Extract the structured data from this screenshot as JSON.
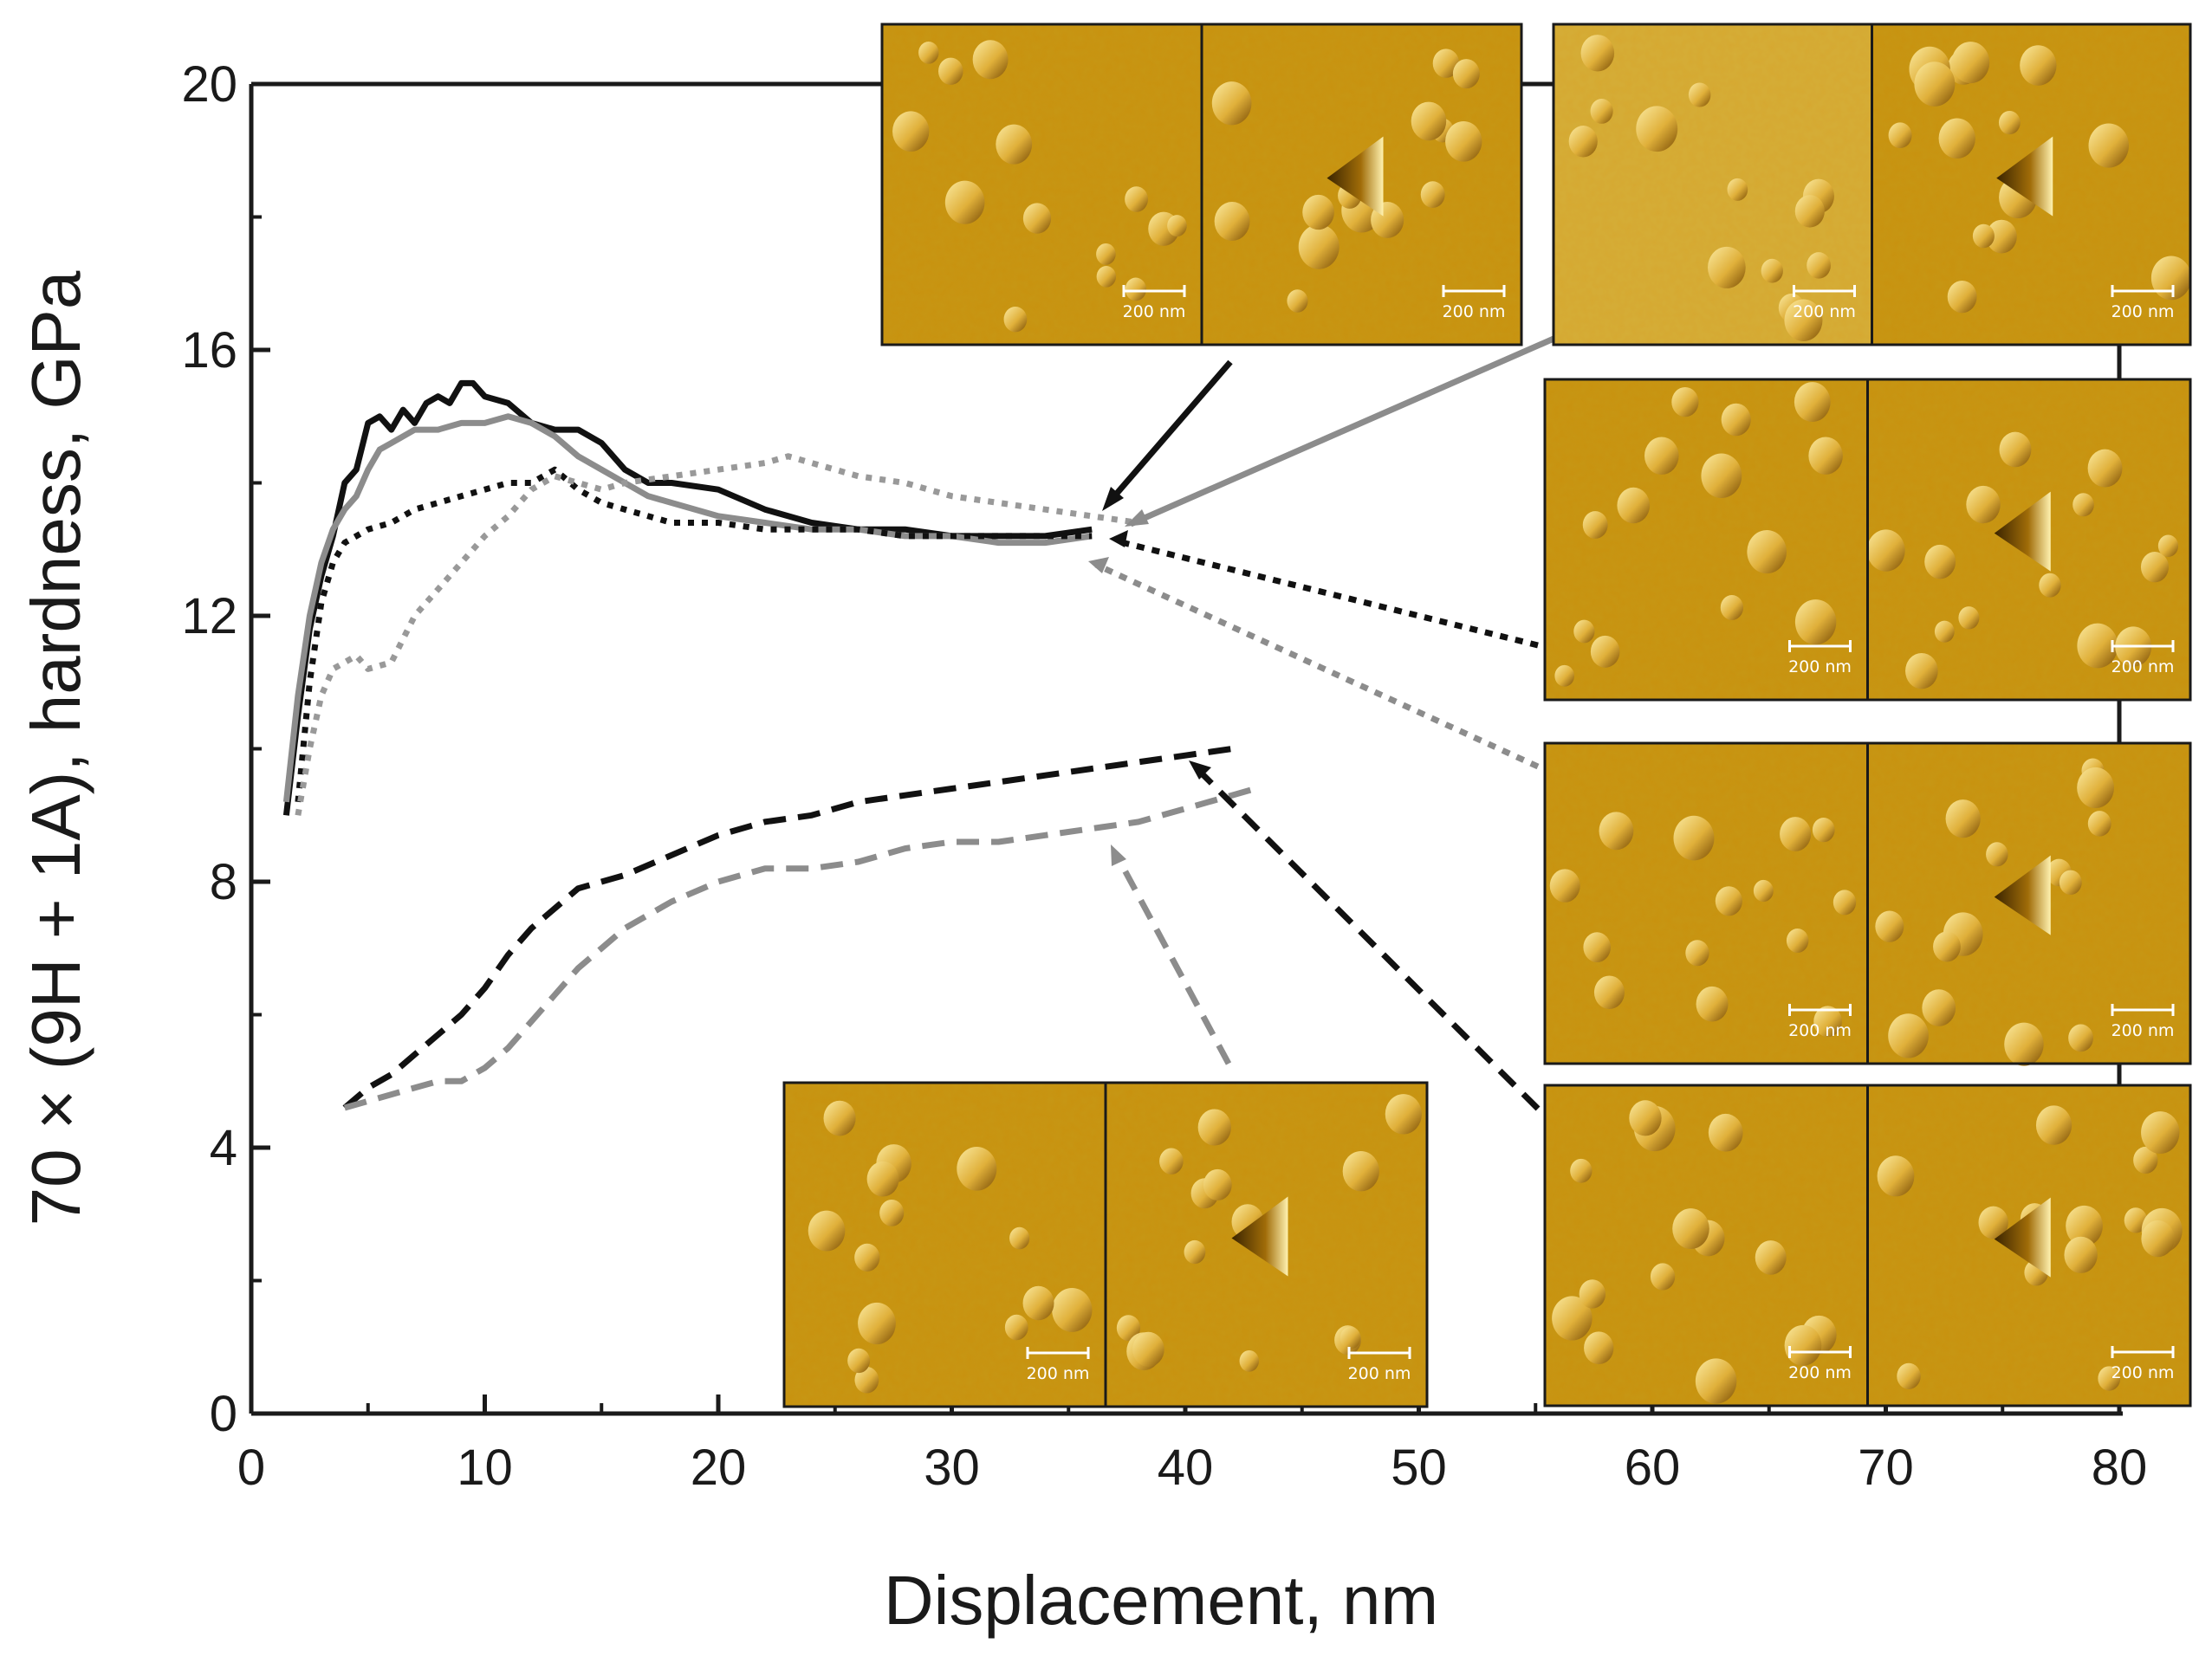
{
  "chart_data": {
    "type": "line",
    "xlabel": "Displacement, nm",
    "ylabel": "70 × (9H + 1A), hardness, GPa",
    "xlim": [
      0,
      80
    ],
    "ylim": [
      0,
      20
    ],
    "xticks": [
      0,
      10,
      20,
      30,
      40,
      50,
      60,
      70,
      80
    ],
    "yticks": [
      0,
      4,
      8,
      12,
      16,
      20
    ],
    "x_tick_labels": [
      "0",
      "10",
      "20",
      "30",
      "40",
      "50",
      "60",
      "70",
      "80"
    ],
    "y_tick_labels": [
      "0",
      "4",
      "8",
      "12",
      "16",
      "20"
    ],
    "grid": false,
    "series": [
      {
        "color": "#111111",
        "style": "solid",
        "x": [
          1.5,
          2,
          2.5,
          3,
          3.5,
          4,
          4.5,
          5,
          5.5,
          6,
          6.5,
          7,
          7.5,
          8,
          8.5,
          9,
          9.5,
          10,
          11,
          12,
          13,
          14,
          15,
          16,
          17,
          18,
          20,
          22,
          24,
          26,
          28,
          30,
          32,
          34,
          36
        ],
        "y": [
          9.0,
          10.5,
          11.8,
          12.6,
          13.2,
          14.0,
          14.2,
          14.9,
          15.0,
          14.8,
          15.1,
          14.9,
          15.2,
          15.3,
          15.2,
          15.5,
          15.5,
          15.3,
          15.2,
          14.9,
          14.8,
          14.8,
          14.6,
          14.2,
          14.0,
          14.0,
          13.9,
          13.6,
          13.4,
          13.3,
          13.3,
          13.2,
          13.2,
          13.2,
          13.3
        ]
      },
      {
        "color": "#8c8c8c",
        "style": "solid",
        "x": [
          1.5,
          2,
          2.5,
          3,
          3.5,
          4,
          4.5,
          5,
          5.5,
          6,
          7,
          8,
          9,
          10,
          11,
          12,
          13,
          14,
          15,
          16,
          17,
          18,
          20,
          22,
          24,
          26,
          28,
          30,
          32,
          34,
          36
        ],
        "y": [
          9.2,
          10.8,
          12.0,
          12.8,
          13.3,
          13.6,
          13.8,
          14.2,
          14.5,
          14.6,
          14.8,
          14.8,
          14.9,
          14.9,
          15.0,
          14.9,
          14.7,
          14.4,
          14.2,
          14.0,
          13.8,
          13.7,
          13.5,
          13.4,
          13.3,
          13.3,
          13.2,
          13.2,
          13.1,
          13.1,
          13.2
        ]
      },
      {
        "color": "#111111",
        "style": "dotted",
        "x": [
          2,
          2.5,
          3,
          3.5,
          4,
          5,
          6,
          7,
          8,
          9,
          10,
          11,
          12,
          13,
          14,
          15,
          16,
          18,
          20,
          22,
          24,
          26,
          28,
          30,
          32,
          34,
          36
        ],
        "y": [
          9.2,
          11.0,
          12.2,
          12.8,
          13.1,
          13.3,
          13.4,
          13.6,
          13.7,
          13.8,
          13.9,
          14.0,
          14.0,
          14.2,
          13.9,
          13.7,
          13.6,
          13.4,
          13.4,
          13.3,
          13.3,
          13.3,
          13.2,
          13.2,
          13.2,
          13.2,
          13.2
        ]
      },
      {
        "color": "#999999",
        "style": "dotted",
        "x": [
          2,
          2.5,
          3,
          3.5,
          4,
          4.5,
          5,
          6,
          7,
          8,
          9,
          10,
          11,
          12,
          13,
          14,
          15,
          16,
          18,
          20,
          22,
          23,
          24,
          26,
          28,
          30,
          32,
          34,
          36,
          38
        ],
        "y": [
          9.0,
          10.0,
          10.8,
          11.2,
          11.3,
          11.4,
          11.2,
          11.3,
          12.0,
          12.4,
          12.8,
          13.2,
          13.5,
          13.9,
          14.1,
          14.0,
          13.9,
          14.0,
          14.1,
          14.2,
          14.3,
          14.4,
          14.3,
          14.1,
          14.0,
          13.8,
          13.7,
          13.6,
          13.5,
          13.4
        ]
      },
      {
        "color": "#111111",
        "style": "dashed",
        "x": [
          4,
          5,
          6,
          7,
          8,
          9,
          10,
          11,
          12,
          13,
          14,
          15,
          16,
          18,
          20,
          22,
          24,
          26,
          28,
          30,
          32,
          34,
          36,
          38,
          40,
          42
        ],
        "y": [
          4.6,
          4.9,
          5.1,
          5.4,
          5.7,
          6.0,
          6.4,
          6.9,
          7.3,
          7.6,
          7.9,
          8.0,
          8.1,
          8.4,
          8.7,
          8.9,
          9.0,
          9.2,
          9.3,
          9.4,
          9.5,
          9.6,
          9.7,
          9.8,
          9.9,
          10.0
        ]
      },
      {
        "color": "#8c8c8c",
        "style": "dashed",
        "x": [
          4,
          5,
          6,
          7,
          8,
          9,
          10,
          11,
          12,
          13,
          14,
          15,
          16,
          18,
          20,
          22,
          24,
          26,
          28,
          30,
          32,
          34,
          36,
          38,
          40,
          42,
          43
        ],
        "y": [
          4.6,
          4.7,
          4.8,
          4.9,
          5.0,
          5.0,
          5.2,
          5.5,
          5.9,
          6.3,
          6.7,
          7.0,
          7.3,
          7.7,
          8.0,
          8.2,
          8.2,
          8.3,
          8.5,
          8.6,
          8.6,
          8.7,
          8.8,
          8.9,
          9.1,
          9.3,
          9.4
        ]
      }
    ],
    "annotations": [
      {
        "panel": "top-left",
        "scale_labels": [
          "200 nm",
          "200 nm"
        ]
      },
      {
        "panel": "top-right",
        "scale_labels": [
          "200 nm",
          "200 nm"
        ]
      },
      {
        "panel": "right-2",
        "scale_labels": [
          "200 nm",
          "200 nm"
        ]
      },
      {
        "panel": "right-3",
        "scale_labels": [
          "200 nm",
          "200 nm"
        ]
      },
      {
        "panel": "right-4",
        "scale_labels": [
          "200 nm",
          "200 nm"
        ]
      },
      {
        "panel": "bottom-center",
        "scale_labels": [
          "200 nm",
          "200 nm"
        ]
      }
    ]
  },
  "colors": {
    "afm_base": "#c8920f",
    "afm_dark": "#8a5a05",
    "afm_light": "#f3d978",
    "axis": "#1a1a1a"
  }
}
